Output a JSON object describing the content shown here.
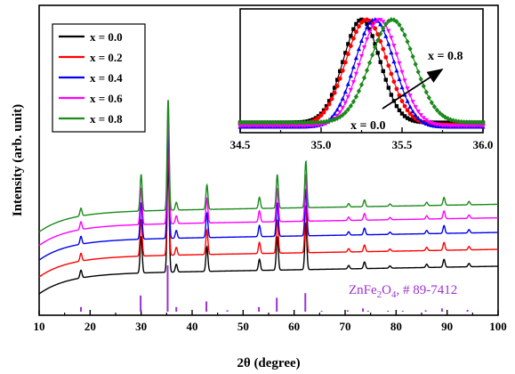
{
  "colors": {
    "x0": "#000000",
    "x2": "#ff0000",
    "x4": "#0000ee",
    "x6": "#ff00ff",
    "x8": "#1a8a1a",
    "reference": "#9b30d0"
  },
  "chart_data": [
    {
      "type": "line",
      "title": "",
      "xlabel": "2θ (degree)",
      "ylabel": "Intensity (arb. unit)",
      "xlim": [
        10,
        100
      ],
      "x_ticks": [
        "10",
        "20",
        "30",
        "40",
        "50",
        "60",
        "70",
        "80",
        "90",
        "100"
      ],
      "grid": false,
      "legend_position": "top-left",
      "peaks": [
        {
          "x": 18.2,
          "h": 0.07
        },
        {
          "x": 30.0,
          "h": 0.33
        },
        {
          "x": 35.3,
          "h": 1.0
        },
        {
          "x": 36.9,
          "h": 0.07
        },
        {
          "x": 42.9,
          "h": 0.22
        },
        {
          "x": 53.2,
          "h": 0.1
        },
        {
          "x": 56.7,
          "h": 0.3
        },
        {
          "x": 62.3,
          "h": 0.42
        },
        {
          "x": 70.7,
          "h": 0.03
        },
        {
          "x": 73.8,
          "h": 0.06
        },
        {
          "x": 78.8,
          "h": 0.02
        },
        {
          "x": 86.0,
          "h": 0.03
        },
        {
          "x": 89.4,
          "h": 0.07
        },
        {
          "x": 94.3,
          "h": 0.03
        }
      ],
      "series": [
        {
          "name": "x = 0.0",
          "color": "#000000",
          "offset": 0.0
        },
        {
          "name": "x = 0.2",
          "color": "#ff0000",
          "offset": 0.15
        },
        {
          "name": "x = 0.4",
          "color": "#0000ee",
          "offset": 0.3
        },
        {
          "name": "x = 0.6",
          "color": "#ff00ff",
          "offset": 0.43
        },
        {
          "name": "x = 0.8",
          "color": "#1a8a1a",
          "offset": 0.55
        }
      ],
      "reference": {
        "label_prefix": "ZnFe",
        "label_sub1": "2",
        "label_mid": "O",
        "label_sub2": "4",
        "label_suffix": ", # 89-7412",
        "lines": [
          {
            "x": 18.2,
            "h": 0.1
          },
          {
            "x": 29.9,
            "h": 0.35
          },
          {
            "x": 35.2,
            "h": 1.0
          },
          {
            "x": 36.9,
            "h": 0.1
          },
          {
            "x": 42.8,
            "h": 0.22
          },
          {
            "x": 46.9,
            "h": 0.03
          },
          {
            "x": 53.1,
            "h": 0.1
          },
          {
            "x": 56.6,
            "h": 0.3
          },
          {
            "x": 62.2,
            "h": 0.4
          },
          {
            "x": 65.4,
            "h": 0.02
          },
          {
            "x": 70.5,
            "h": 0.03
          },
          {
            "x": 73.5,
            "h": 0.07
          },
          {
            "x": 74.5,
            "h": 0.02
          },
          {
            "x": 78.4,
            "h": 0.02
          },
          {
            "x": 81.3,
            "h": 0.02
          },
          {
            "x": 85.8,
            "h": 0.03
          },
          {
            "x": 89.0,
            "h": 0.07
          },
          {
            "x": 94.0,
            "h": 0.04
          }
        ]
      }
    },
    {
      "type": "line",
      "title": "",
      "xlim": [
        34.5,
        36.0
      ],
      "x_ticks": [
        "34.5",
        "35.0",
        "35.5",
        "36.0"
      ],
      "annotation_start": "x = 0.0",
      "annotation_end": "x = 0.8",
      "series": [
        {
          "name": "x = 0.0",
          "color": "#000000",
          "center": 35.25,
          "width": 0.16,
          "base": 0.06,
          "marker": "square"
        },
        {
          "name": "x = 0.2",
          "color": "#ff0000",
          "center": 35.28,
          "width": 0.18,
          "base": 0.04,
          "marker": "circle"
        },
        {
          "name": "x = 0.4",
          "color": "#0000ee",
          "center": 35.33,
          "width": 0.17,
          "base": 0.02,
          "marker": "triangle"
        },
        {
          "name": "x = 0.6",
          "color": "#ff00ff",
          "center": 35.36,
          "width": 0.17,
          "base": 0.03,
          "marker": "triangle-down"
        },
        {
          "name": "x = 0.8",
          "color": "#1a8a1a",
          "center": 35.44,
          "width": 0.19,
          "base": 0.06,
          "marker": "diamond"
        }
      ]
    }
  ]
}
